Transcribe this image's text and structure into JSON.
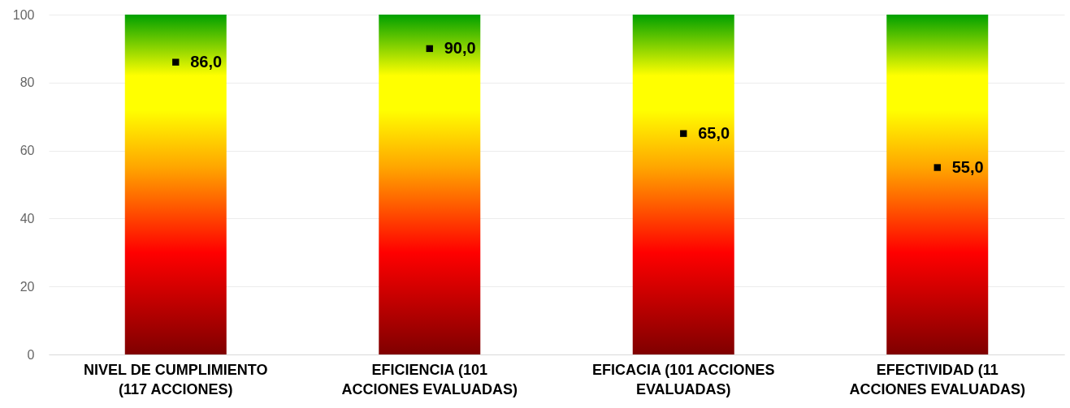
{
  "chart_data": {
    "type": "bar",
    "categories": [
      "NIVEL DE CUMPLIMIENTO (117 ACCIONES)",
      "EFICIENCIA (101 ACCIONES EVALUADAS)",
      "EFICACIA (101 ACCIONES EVALUADAS)",
      "EFECTIVIDAD (11 ACCIONES EVALUADAS)"
    ],
    "series": [
      {
        "color": "#ffff00",
        "values": [
          100,
          100,
          100,
          100
        ]
      },
      {
        "type": "scatter",
        "color": "#000000",
        "values": [
          86.0,
          90.0,
          65.0,
          55.0
        ],
        "value_labels": [
          "86,0",
          "90,0",
          "65,0",
          "55,0"
        ]
      }
    ],
    "ylim": [
      0,
      100
    ],
    "yticks": [
      0,
      20,
      40,
      60,
      80,
      100
    ],
    "grid": "y",
    "marker": "square"
  }
}
